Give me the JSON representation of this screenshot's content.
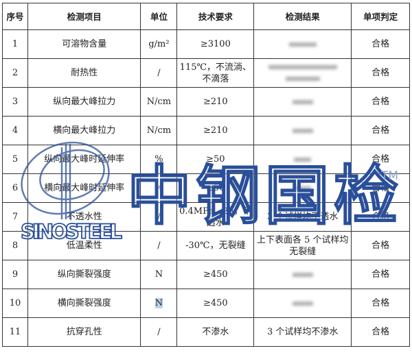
{
  "table": {
    "headers": [
      "序号",
      "检测项目",
      "单位",
      "技术要求",
      "检测结果",
      "单项判定"
    ],
    "rows": [
      {
        "no": "1",
        "item": "可溶物含量",
        "unit": "g/m²",
        "req": "≥3100",
        "result": "",
        "verdict": "合格"
      },
      {
        "no": "2",
        "item": "耐热性",
        "unit": "/",
        "req": "115℃，不流淌、不滴落",
        "result": "",
        "verdict": "合格"
      },
      {
        "no": "3",
        "item": "纵向最大峰拉力",
        "unit": "N/cm",
        "req": "≥210",
        "result": "",
        "verdict": "合格"
      },
      {
        "no": "4",
        "item": "横向最大峰拉力",
        "unit": "N/cm",
        "req": "≥210",
        "result": "",
        "verdict": "合格"
      },
      {
        "no": "5",
        "item": "纵向最大峰时延伸率",
        "unit": "%",
        "req": "≥50",
        "result": "",
        "verdict": "合格"
      },
      {
        "no": "6",
        "item": "横向最大峰时延伸率",
        "unit": "%",
        "req": "≥50",
        "result": "",
        "verdict": "合格"
      },
      {
        "no": "7",
        "item": "不透水性",
        "unit": "/",
        "req": "0.4MPa，2h，不透水",
        "result": "3 个试样均不透水",
        "verdict": "合格"
      },
      {
        "no": "8",
        "item": "低温柔性",
        "unit": "/",
        "req": "-30℃，无裂缝",
        "result": "上下表面各 5 个试样均无裂缝",
        "verdict": "合格"
      },
      {
        "no": "9",
        "item": "纵向撕裂强度",
        "unit": "N",
        "req": "≥450",
        "result": "",
        "verdict": "合格"
      },
      {
        "no": "10",
        "item": "横向撕裂强度",
        "unit": "N",
        "req": "≥450",
        "result": "",
        "verdict": "合格"
      },
      {
        "no": "11",
        "item": "抗穿孔性",
        "unit": "/",
        "req": "不渗水",
        "result": "3 个试样均不渗水",
        "verdict": "合格"
      }
    ]
  },
  "watermark": {
    "brand": "中钢国检",
    "latin": "SINOSTEEL",
    "tm": "TM",
    "color": "#2a4f9a"
  }
}
